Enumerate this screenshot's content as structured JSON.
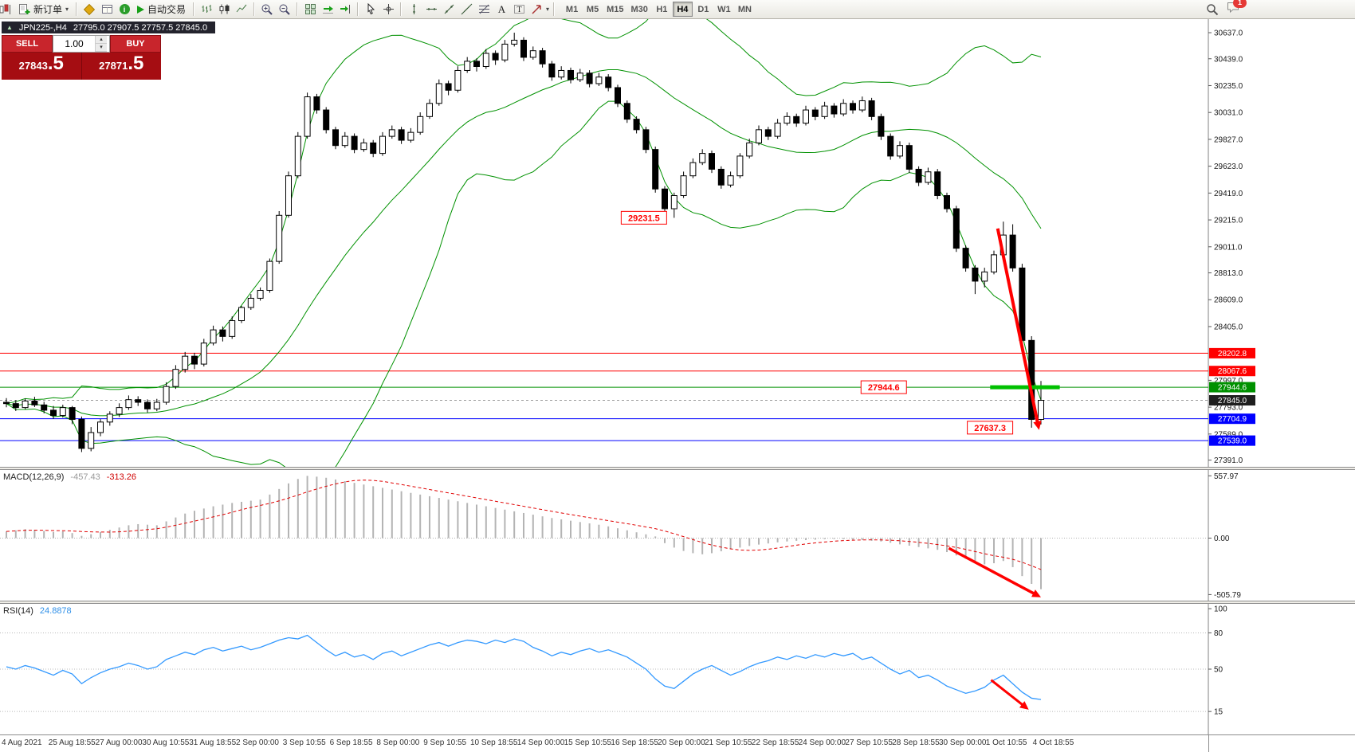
{
  "toolbar": {
    "new_order_label": "新订单",
    "autotrade_label": "自动交易",
    "timeframes": [
      "M1",
      "M5",
      "M15",
      "M30",
      "H1",
      "H4",
      "D1",
      "W1",
      "MN"
    ],
    "active_timeframe": "H4",
    "notification_count": "1"
  },
  "symbol_bar": {
    "title": "JPN225-,H4",
    "ohlc": "27795.0 27907.5 27757.5 27845.0"
  },
  "trade_widget": {
    "sell_label": "SELL",
    "buy_label": "BUY",
    "volume": "1.00",
    "sell_price_small": "27843",
    "sell_price_large": ".5",
    "buy_price_small": "27871",
    "buy_price_large": ".5"
  },
  "chart_data": [
    {
      "type": "candlestick",
      "title": "JPN225- H4",
      "y_range": [
        27340,
        30740
      ],
      "y_ticks": [
        30637.0,
        30439.0,
        30235.0,
        30031.0,
        29827.0,
        29623.0,
        29419.0,
        29215.0,
        29011.0,
        28813.0,
        28609.0,
        28405.0,
        27997.0,
        27793.0,
        27589.0,
        27391.0
      ],
      "levels": [
        {
          "price": 28202.8,
          "label": "28202.8",
          "color": "#ff0000"
        },
        {
          "price": 28067.6,
          "label": "28067.6",
          "color": "#ff0000"
        },
        {
          "price": 27944.6,
          "label": "27944.6",
          "color": "#009100"
        },
        {
          "price": 27704.9,
          "label": "27704.9",
          "color": "#0000ff"
        },
        {
          "price": 27539.0,
          "label": "27539.0",
          "color": "#0000ff"
        }
      ],
      "current_price": {
        "value": 27845.0,
        "label": "27845.0"
      },
      "bollinger": {
        "period": 20,
        "deviation": 2,
        "color": "#009100"
      },
      "callouts": [
        {
          "text": "29231.5",
          "i": 70.2,
          "price": 29231.5
        },
        {
          "text": "27944.6",
          "i": 95.7,
          "price": 27944.6
        },
        {
          "text": "27637.3",
          "i": 107.0,
          "price": 27637.3
        }
      ],
      "green_segment": {
        "price": 27944.6,
        "i1": 104.6,
        "i2": 112.0,
        "color": "#00c000"
      },
      "arrow": {
        "from_i": 105.4,
        "from_v": 29150,
        "to_i": 109.8,
        "to_v": 27620,
        "color": "#ff0000"
      },
      "x_labels": [
        "4 Aug 2021",
        "25 Aug 18:55",
        "27 Aug 00:00",
        "30 Aug 10:55",
        "31 Aug 18:55",
        "2 Sep 00:00",
        "3 Sep 10:55",
        "6 Sep 18:55",
        "8 Sep 00:00",
        "9 Sep 10:55",
        "10 Sep 18:55",
        "14 Sep 00:00",
        "15 Sep 10:55",
        "16 Sep 18:55",
        "20 Sep 00:00",
        "21 Sep 10:55",
        "22 Sep 18:55",
        "24 Sep 00:00",
        "27 Sep 10:55",
        "28 Sep 18:55",
        "30 Sep 00:00",
        "1 Oct 10:55",
        "4 Oct 18:55"
      ],
      "candles": [
        [
          27830,
          27862,
          27792,
          27820
        ],
        [
          27820,
          27846,
          27764,
          27790
        ],
        [
          27790,
          27858,
          27778,
          27840
        ],
        [
          27840,
          27872,
          27794,
          27810
        ],
        [
          27810,
          27834,
          27746,
          27770
        ],
        [
          27770,
          27802,
          27704,
          27730
        ],
        [
          27730,
          27812,
          27714,
          27790
        ],
        [
          27790,
          27802,
          27664,
          27700
        ],
        [
          27700,
          27722,
          27452,
          27480
        ],
        [
          27480,
          27642,
          27458,
          27600
        ],
        [
          27600,
          27702,
          27572,
          27680
        ],
        [
          27680,
          27762,
          27652,
          27740
        ],
        [
          27740,
          27822,
          27718,
          27790
        ],
        [
          27790,
          27882,
          27772,
          27850
        ],
        [
          27850,
          27876,
          27802,
          27830
        ],
        [
          27830,
          27852,
          27752,
          27780
        ],
        [
          27780,
          27856,
          27762,
          27830
        ],
        [
          27830,
          27982,
          27812,
          27950
        ],
        [
          27950,
          28112,
          27932,
          28080
        ],
        [
          28080,
          28212,
          28056,
          28180
        ],
        [
          28180,
          28206,
          28082,
          28120
        ],
        [
          28120,
          28312,
          28102,
          28280
        ],
        [
          28280,
          28412,
          28262,
          28380
        ],
        [
          28380,
          28406,
          28292,
          28330
        ],
        [
          28330,
          28482,
          28312,
          28450
        ],
        [
          28450,
          28562,
          28432,
          28550
        ],
        [
          28550,
          28652,
          28532,
          28620
        ],
        [
          28620,
          28702,
          28602,
          28680
        ],
        [
          28680,
          28922,
          28662,
          28900
        ],
        [
          28900,
          29282,
          28882,
          29250
        ],
        [
          29250,
          29582,
          29232,
          29550
        ],
        [
          29550,
          29882,
          29532,
          29850
        ],
        [
          29850,
          30182,
          29832,
          30150
        ],
        [
          30150,
          30172,
          30022,
          30050
        ],
        [
          30050,
          30072,
          29872,
          29900
        ],
        [
          29900,
          29922,
          29752,
          29780
        ],
        [
          29780,
          29882,
          29762,
          29850
        ],
        [
          29850,
          29872,
          29722,
          29750
        ],
        [
          29750,
          29832,
          29732,
          29800
        ],
        [
          29800,
          29822,
          29692,
          29720
        ],
        [
          29720,
          29882,
          29702,
          29850
        ],
        [
          29850,
          29932,
          29832,
          29900
        ],
        [
          29900,
          29922,
          29792,
          29820
        ],
        [
          29820,
          29912,
          29802,
          29880
        ],
        [
          29880,
          30032,
          29862,
          30000
        ],
        [
          30000,
          30132,
          29982,
          30100
        ],
        [
          30100,
          30282,
          30082,
          30250
        ],
        [
          30250,
          30272,
          30162,
          30200
        ],
        [
          30200,
          30382,
          30182,
          30350
        ],
        [
          30350,
          30452,
          30332,
          30420
        ],
        [
          30420,
          30442,
          30342,
          30380
        ],
        [
          30380,
          30512,
          30362,
          30480
        ],
        [
          30480,
          30502,
          30392,
          30430
        ],
        [
          30430,
          30582,
          30412,
          30550
        ],
        [
          30550,
          30637,
          30532,
          30580
        ],
        [
          30580,
          30602,
          30422,
          30450
        ],
        [
          30450,
          30532,
          30432,
          30500
        ],
        [
          30500,
          30522,
          30372,
          30400
        ],
        [
          30400,
          30422,
          30272,
          30300
        ],
        [
          30300,
          30382,
          30282,
          30350
        ],
        [
          30350,
          30372,
          30252,
          30280
        ],
        [
          30280,
          30362,
          30262,
          30330
        ],
        [
          30330,
          30352,
          30222,
          30250
        ],
        [
          30250,
          30332,
          30232,
          30300
        ],
        [
          30300,
          30322,
          30192,
          30220
        ],
        [
          30220,
          30242,
          30072,
          30100
        ],
        [
          30100,
          30122,
          29952,
          29980
        ],
        [
          29980,
          30002,
          29872,
          29900
        ],
        [
          29900,
          29922,
          29722,
          29750
        ],
        [
          29750,
          29772,
          29422,
          29450
        ],
        [
          29450,
          29472,
          29242,
          29300
        ],
        [
          29300,
          29422,
          29231,
          29400
        ],
        [
          29400,
          29582,
          29382,
          29550
        ],
        [
          29550,
          29682,
          29532,
          29650
        ],
        [
          29650,
          29752,
          29632,
          29720
        ],
        [
          29720,
          29742,
          29572,
          29600
        ],
        [
          29600,
          29622,
          29452,
          29480
        ],
        [
          29480,
          29582,
          29462,
          29550
        ],
        [
          29550,
          29722,
          29532,
          29700
        ],
        [
          29700,
          29832,
          29682,
          29800
        ],
        [
          29800,
          29932,
          29782,
          29900
        ],
        [
          29900,
          29922,
          29822,
          29850
        ],
        [
          29850,
          29982,
          29832,
          29950
        ],
        [
          29950,
          30032,
          29932,
          30000
        ],
        [
          30000,
          30022,
          29922,
          29950
        ],
        [
          29950,
          30082,
          29932,
          30050
        ],
        [
          30050,
          30072,
          29972,
          30000
        ],
        [
          30000,
          30112,
          29982,
          30080
        ],
        [
          30080,
          30102,
          29992,
          30020
        ],
        [
          30020,
          30132,
          30002,
          30100
        ],
        [
          30100,
          30122,
          30022,
          30050
        ],
        [
          30050,
          30152,
          30032,
          30120
        ],
        [
          30120,
          30142,
          29972,
          30000
        ],
        [
          30000,
          30022,
          29822,
          29850
        ],
        [
          29850,
          29872,
          29672,
          29700
        ],
        [
          29700,
          29812,
          29682,
          29780
        ],
        [
          29780,
          29802,
          29572,
          29600
        ],
        [
          29600,
          29622,
          29472,
          29500
        ],
        [
          29500,
          29612,
          29482,
          29580
        ],
        [
          29580,
          29602,
          29372,
          29400
        ],
        [
          29400,
          29422,
          29272,
          29300
        ],
        [
          29300,
          29322,
          28972,
          29000
        ],
        [
          29000,
          29022,
          28822,
          28850
        ],
        [
          28850,
          28872,
          28652,
          28750
        ],
        [
          28750,
          28852,
          28702,
          28820
        ],
        [
          28820,
          28982,
          28802,
          28950
        ],
        [
          28950,
          29202,
          28932,
          29100
        ],
        [
          29100,
          29182,
          28822,
          28850
        ],
        [
          28850,
          28882,
          28252,
          28300
        ],
        [
          28300,
          28332,
          27637,
          27700
        ],
        [
          27700,
          27992,
          27662,
          27845
        ]
      ]
    },
    {
      "type": "macd",
      "label": "MACD(12,26,9)",
      "main_value": "-457.43",
      "signal_value": "-313.26",
      "y_range": [
        -560,
        610
      ],
      "y_ticks": [
        557.97,
        0.0,
        -505.79
      ],
      "signal_period": 9,
      "histogram_color": "#b4b4b4",
      "signal_color": "#e00000",
      "arrow": {
        "from_i": 100.2,
        "from_v": -90,
        "to_i": 110.0,
        "to_v": -530,
        "color": "#ff0000"
      },
      "histogram": [
        60,
        70,
        80,
        75,
        65,
        55,
        60,
        45,
        20,
        35,
        55,
        75,
        95,
        115,
        125,
        120,
        115,
        150,
        185,
        220,
        245,
        265,
        285,
        300,
        315,
        325,
        335,
        345,
        390,
        440,
        490,
        530,
        557,
        550,
        540,
        525,
        510,
        495,
        480,
        465,
        450,
        435,
        420,
        405,
        390,
        375,
        360,
        345,
        330,
        315,
        300,
        285,
        270,
        255,
        240,
        225,
        210,
        195,
        180,
        168,
        156,
        144,
        132,
        120,
        105,
        88,
        70,
        52,
        34,
        15,
        -45,
        -85,
        -115,
        -135,
        -145,
        -135,
        -118,
        -100,
        -85,
        -70,
        -58,
        -48,
        -38,
        -30,
        -24,
        -18,
        -14,
        -10,
        -8,
        -10,
        -14,
        -18,
        -24,
        -30,
        -42,
        -56,
        -68,
        -80,
        -92,
        -105,
        -125,
        -155,
        -185,
        -215,
        -235,
        -225,
        -205,
        -260,
        -340,
        -410,
        -457.43
      ]
    },
    {
      "type": "rsi",
      "label": "RSI(14)",
      "value": "24.8878",
      "y_range": [
        -4,
        104
      ],
      "y_ticks": [
        100,
        80,
        50,
        15
      ],
      "levels": [
        80,
        50,
        15
      ],
      "line_color": "#3399ff",
      "arrow": {
        "from_i": 104.7,
        "from_v": 41,
        "to_i": 108.7,
        "to_v": 16.5,
        "color": "#ff0000"
      },
      "values": [
        52,
        50,
        53,
        51,
        48,
        45,
        49,
        46,
        38,
        43,
        47,
        50,
        52,
        55,
        53,
        50,
        52,
        58,
        61,
        64,
        62,
        66,
        68,
        65,
        67,
        69,
        66,
        68,
        71,
        74,
        76,
        75,
        78,
        72,
        66,
        61,
        64,
        60,
        62,
        58,
        63,
        65,
        61,
        64,
        67,
        70,
        72,
        69,
        72,
        74,
        73,
        71,
        74,
        72,
        75,
        73,
        68,
        65,
        61,
        64,
        62,
        65,
        67,
        64,
        66,
        63,
        60,
        55,
        50,
        42,
        36,
        34,
        40,
        46,
        50,
        53,
        49,
        45,
        48,
        52,
        55,
        57,
        60,
        58,
        61,
        59,
        62,
        60,
        63,
        61,
        63,
        58,
        60,
        55,
        50,
        46,
        49,
        43,
        45,
        41,
        36,
        33,
        30,
        32,
        35,
        41,
        45,
        38,
        31,
        26,
        24.8878
      ]
    }
  ]
}
